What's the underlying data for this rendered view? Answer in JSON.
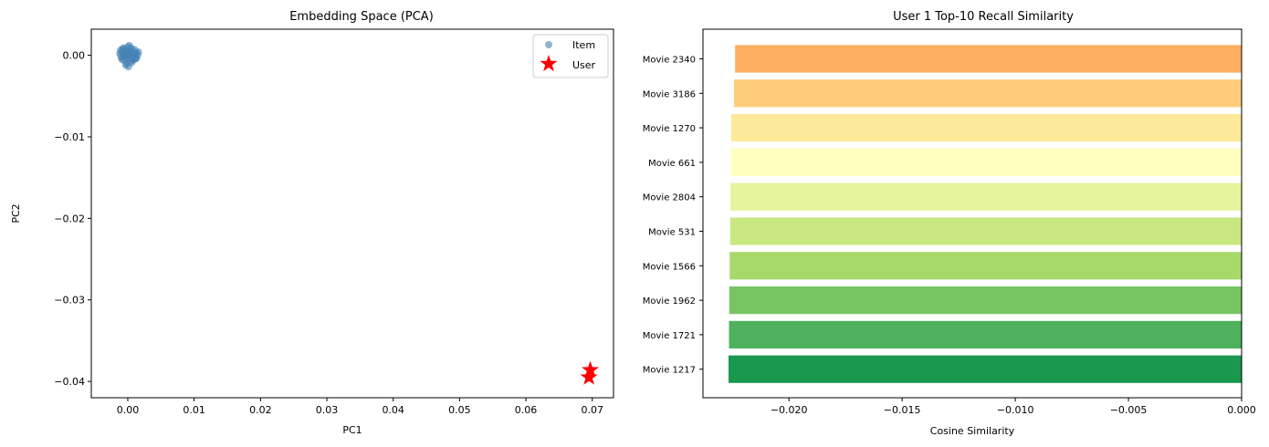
{
  "chart_data": [
    {
      "type": "scatter",
      "title": "Embedding Space (PCA)",
      "xlabel": "PC1",
      "ylabel": "PC2",
      "xlim": [
        -0.0055,
        0.0732
      ],
      "ylim": [
        -0.042,
        0.0032
      ],
      "xticks": [
        0.0,
        0.01,
        0.02,
        0.03,
        0.04,
        0.05,
        0.06,
        0.07
      ],
      "xtick_labels": [
        "0.00",
        "0.01",
        "0.02",
        "0.03",
        "0.04",
        "0.05",
        "0.06",
        "0.07"
      ],
      "yticks": [
        0.0,
        -0.01,
        -0.02,
        -0.03,
        -0.04
      ],
      "ytick_labels": [
        "0.00",
        "−0.01",
        "−0.02",
        "−0.03",
        "−0.04"
      ],
      "grid": false,
      "legend_position": "top-right",
      "series": [
        {
          "name": "Item",
          "marker": "circle",
          "color": "#4682b4",
          "points": [
            [
              -0.0008,
              0.0008
            ],
            [
              -0.0005,
              0.0006
            ],
            [
              0.0,
              0.001
            ],
            [
              0.0005,
              0.0009
            ],
            [
              0.001,
              0.0007
            ],
            [
              0.0013,
              0.0003
            ],
            [
              0.0015,
              0.0
            ],
            [
              0.0012,
              -0.0003
            ],
            [
              0.0008,
              -0.0006
            ],
            [
              0.0003,
              -0.0008
            ],
            [
              -0.0002,
              -0.001
            ],
            [
              -0.0006,
              -0.0006
            ],
            [
              -0.001,
              -0.0002
            ],
            [
              -0.0012,
              0.0002
            ],
            [
              -0.0009,
              0.0004
            ],
            [
              -0.0004,
              0.0002
            ],
            [
              0.0,
              0.0
            ],
            [
              0.0004,
              0.0003
            ],
            [
              0.0007,
              0.0001
            ],
            [
              0.0004,
              -0.0003
            ],
            [
              0.0,
              -0.0004
            ],
            [
              -0.0005,
              -0.0002
            ],
            [
              -0.0002,
              0.0004
            ],
            [
              0.0002,
              0.0005
            ],
            [
              0.0009,
              0.0004
            ],
            [
              0.0011,
              -0.0001
            ],
            [
              -0.0007,
              0.0
            ],
            [
              0.0006,
              -0.0009
            ],
            [
              -0.0003,
              -0.0012
            ],
            [
              0.0001,
              -0.0014
            ],
            [
              0.0016,
              0.0004
            ],
            [
              -0.0011,
              0.0006
            ],
            [
              0.0002,
              0.0012
            ],
            [
              -0.0001,
              0.0001
            ],
            [
              0.0006,
              0.0006
            ],
            [
              -0.0006,
              0.0009
            ],
            [
              0.001,
              -0.0005
            ],
            [
              -0.0009,
              -0.0005
            ],
            [
              0.0013,
              -0.0004
            ],
            [
              0.0003,
              0.0
            ]
          ]
        },
        {
          "name": "User",
          "marker": "star",
          "color": "#ff0000",
          "points": [
            [
              0.0697,
              -0.0386
            ],
            [
              0.0695,
              -0.0395
            ]
          ]
        }
      ]
    },
    {
      "type": "bar",
      "orientation": "horizontal",
      "title": "User 1 Top-10 Recall Similarity",
      "xlabel": "Cosine Similarity",
      "ylabel": "",
      "xlim": [
        -0.0238,
        0.0
      ],
      "xticks": [
        -0.02,
        -0.015,
        -0.01,
        -0.005,
        0.0
      ],
      "xtick_labels": [
        "−0.020",
        "−0.015",
        "−0.010",
        "−0.005",
        "0.000"
      ],
      "grid": false,
      "categories": [
        "Movie 2340",
        "Movie 3186",
        "Movie 1270",
        "Movie 661",
        "Movie 2804",
        "Movie 531",
        "Movie 1566",
        "Movie 1962",
        "Movie 1721",
        "Movie 1217"
      ],
      "values": [
        -0.02238,
        -0.02243,
        -0.02255,
        -0.02257,
        -0.02258,
        -0.0226,
        -0.02262,
        -0.02264,
        -0.02265,
        -0.02267
      ],
      "colors": [
        "#fdae61",
        "#fecc7b",
        "#fee89a",
        "#ffffbf",
        "#e6f49d",
        "#c9e781",
        "#a6d96a",
        "#77c463",
        "#4eb15d",
        "#1a9850"
      ]
    }
  ]
}
